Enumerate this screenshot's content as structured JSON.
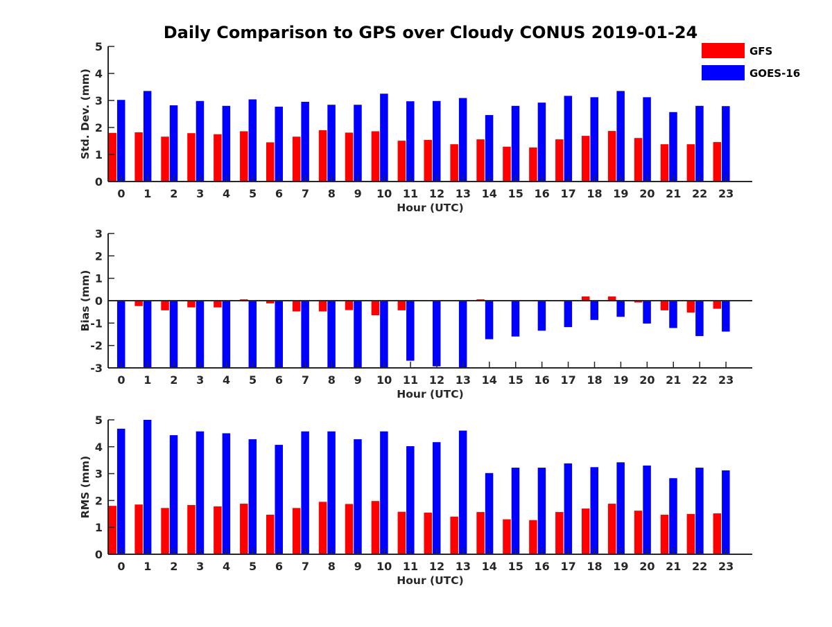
{
  "title": "Daily Comparison to GPS over Cloudy CONUS 2019-01-24",
  "legend": [
    {
      "name": "GFS",
      "color": "#ff0000"
    },
    {
      "name": "GOES-16",
      "color": "#0000ff"
    }
  ],
  "chart_data": [
    {
      "type": "bar",
      "ylabel": "Std. Dev. (mm)",
      "xlabel": "Hour (UTC)",
      "ylim": [
        0,
        5
      ],
      "yticks": [
        0,
        1,
        2,
        3,
        4,
        5
      ],
      "categories": [
        "0",
        "1",
        "2",
        "3",
        "4",
        "5",
        "6",
        "7",
        "8",
        "9",
        "10",
        "11",
        "12",
        "13",
        "14",
        "15",
        "16",
        "17",
        "18",
        "19",
        "20",
        "21",
        "22",
        "23"
      ],
      "series": [
        {
          "name": "GFS",
          "values": [
            1.8,
            1.82,
            1.66,
            1.79,
            1.75,
            1.86,
            1.45,
            1.66,
            1.9,
            1.81,
            1.86,
            1.51,
            1.54,
            1.38,
            1.56,
            1.29,
            1.26,
            1.56,
            1.69,
            1.87,
            1.61,
            1.38,
            1.38,
            1.46
          ]
        },
        {
          "name": "GOES-16",
          "values": [
            3.02,
            3.35,
            2.82,
            2.98,
            2.8,
            3.04,
            2.77,
            2.95,
            2.84,
            2.84,
            3.25,
            2.97,
            2.98,
            3.09,
            2.46,
            2.8,
            2.92,
            3.17,
            3.12,
            3.35,
            3.12,
            2.57,
            2.8,
            2.79
          ]
        }
      ]
    },
    {
      "type": "bar",
      "ylabel": "Bias (mm)",
      "xlabel": "Hour (UTC)",
      "ylim": [
        -3,
        3
      ],
      "yticks": [
        -3,
        -2,
        -1,
        0,
        1,
        2,
        3
      ],
      "zero_line": true,
      "categories": [
        "0",
        "1",
        "2",
        "3",
        "4",
        "5",
        "6",
        "7",
        "8",
        "9",
        "10",
        "11",
        "12",
        "13",
        "14",
        "15",
        "16",
        "17",
        "18",
        "19",
        "20",
        "21",
        "22",
        "23"
      ],
      "series": [
        {
          "name": "GFS",
          "values": [
            0.0,
            -0.24,
            -0.43,
            -0.3,
            -0.3,
            0.06,
            -0.12,
            -0.48,
            -0.48,
            -0.42,
            -0.65,
            -0.43,
            0.0,
            0.0,
            0.06,
            0.0,
            0.02,
            0.0,
            0.19,
            0.19,
            -0.08,
            -0.43,
            -0.53,
            -0.36
          ]
        },
        {
          "name": "GOES-16",
          "values": [
            -3.0,
            -3.0,
            -3.0,
            -3.0,
            -3.0,
            -3.0,
            -3.0,
            -3.0,
            -3.0,
            -3.0,
            -3.0,
            -2.68,
            -2.93,
            -3.0,
            -1.72,
            -1.6,
            -1.34,
            -1.18,
            -0.86,
            -0.72,
            -1.02,
            -1.22,
            -1.58,
            -1.38
          ]
        }
      ]
    },
    {
      "type": "bar",
      "ylabel": "RMS (mm)",
      "xlabel": "Hour (UTC)",
      "ylim": [
        0,
        5
      ],
      "yticks": [
        0,
        1,
        2,
        3,
        4,
        5
      ],
      "categories": [
        "0",
        "1",
        "2",
        "3",
        "4",
        "5",
        "6",
        "7",
        "8",
        "9",
        "10",
        "11",
        "12",
        "13",
        "14",
        "15",
        "16",
        "17",
        "18",
        "19",
        "20",
        "21",
        "22",
        "23"
      ],
      "series": [
        {
          "name": "GFS",
          "values": [
            1.8,
            1.85,
            1.72,
            1.83,
            1.78,
            1.88,
            1.47,
            1.72,
            1.95,
            1.87,
            1.98,
            1.58,
            1.55,
            1.4,
            1.57,
            1.3,
            1.27,
            1.57,
            1.7,
            1.88,
            1.62,
            1.47,
            1.5,
            1.52
          ]
        },
        {
          "name": "GOES-16",
          "values": [
            4.67,
            5.0,
            4.43,
            4.57,
            4.5,
            4.28,
            4.07,
            4.57,
            4.57,
            4.28,
            4.57,
            4.02,
            4.17,
            4.6,
            3.02,
            3.22,
            3.22,
            3.38,
            3.24,
            3.42,
            3.3,
            2.83,
            3.22,
            3.12
          ]
        }
      ]
    }
  ]
}
